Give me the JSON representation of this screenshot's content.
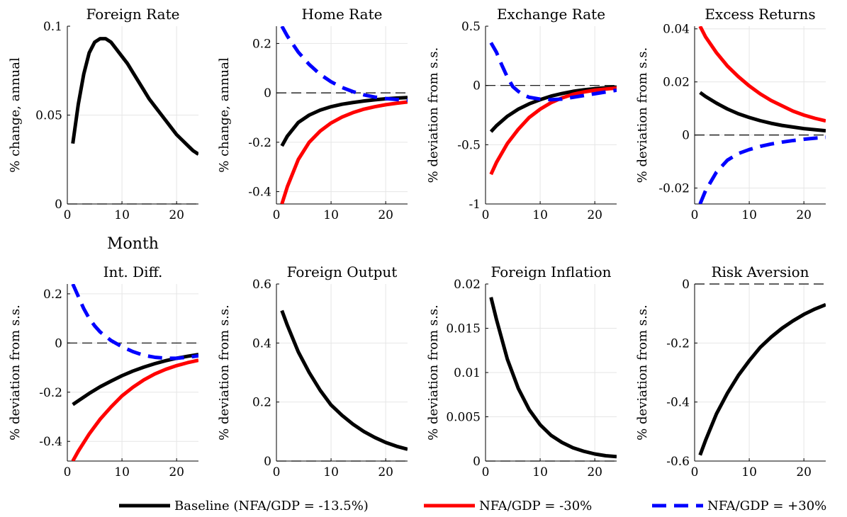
{
  "colors": {
    "baseline": "#000000",
    "nfa_minus30": "#ff0000",
    "nfa_plus30": "#0000ff",
    "grid": "#e6e6e6",
    "zero_line": "#000000"
  },
  "legend": {
    "placement": "bottom",
    "entries": [
      {
        "label": "Baseline (NFA/GDP = -13.5%)",
        "color": "#000000",
        "style": "solid"
      },
      {
        "label": "NFA/GDP = -30%",
        "color": "#ff0000",
        "style": "solid"
      },
      {
        "label": "NFA/GDP = +30%",
        "color": "#0000ff",
        "style": "dashed"
      }
    ]
  },
  "chart_data": [
    {
      "type": "line",
      "title": "Foreign Rate",
      "ylabel": "% change, annual",
      "xlabel": "Month",
      "xlim": [
        0,
        24
      ],
      "ylim": [
        0,
        0.1
      ],
      "xticks": [
        0,
        10,
        20
      ],
      "xtick_labels": [
        "0",
        "10",
        "20"
      ],
      "yticks": [
        0,
        0.05,
        0.1
      ],
      "ytick_labels": [
        "0",
        "0.05",
        "0.1"
      ],
      "grid": true,
      "zero_line": true,
      "series": [
        {
          "key": "baseline",
          "x": [
            1,
            2,
            3,
            4,
            5,
            6,
            7,
            8,
            9,
            10,
            11,
            12,
            13,
            14,
            15,
            16,
            17,
            18,
            19,
            20,
            21,
            22,
            23,
            24
          ],
          "y": [
            0.034,
            0.056,
            0.073,
            0.085,
            0.091,
            0.093,
            0.093,
            0.091,
            0.087,
            0.083,
            0.079,
            0.074,
            0.069,
            0.064,
            0.059,
            0.055,
            0.051,
            0.047,
            0.043,
            0.039,
            0.036,
            0.033,
            0.03,
            0.028
          ]
        }
      ]
    },
    {
      "type": "line",
      "title": "Home Rate",
      "ylabel": "% change, annual",
      "xlabel": "",
      "xlim": [
        0,
        24
      ],
      "ylim": [
        -0.45,
        0.27
      ],
      "xticks": [
        0,
        10,
        20
      ],
      "xtick_labels": [
        "0",
        "10",
        "20"
      ],
      "yticks": [
        -0.4,
        -0.2,
        0,
        0.2
      ],
      "ytick_labels": [
        "-0.4",
        "-0.2",
        "0",
        "0.2"
      ],
      "grid": true,
      "zero_line": true,
      "series": [
        {
          "key": "baseline",
          "x": [
            1,
            2,
            4,
            6,
            8,
            10,
            12,
            14,
            16,
            18,
            20,
            22,
            24
          ],
          "y": [
            -0.215,
            -0.175,
            -0.12,
            -0.09,
            -0.07,
            -0.056,
            -0.046,
            -0.039,
            -0.033,
            -0.028,
            -0.024,
            -0.021,
            -0.019
          ]
        },
        {
          "key": "nfa_minus30",
          "x": [
            1,
            2,
            4,
            6,
            8,
            10,
            12,
            14,
            16,
            18,
            20,
            22,
            24
          ],
          "y": [
            -0.45,
            -0.38,
            -0.27,
            -0.2,
            -0.155,
            -0.122,
            -0.098,
            -0.08,
            -0.066,
            -0.056,
            -0.048,
            -0.042,
            -0.037
          ]
        },
        {
          "key": "nfa_plus30",
          "x": [
            1,
            2,
            4,
            6,
            8,
            10,
            12,
            14,
            16,
            18,
            20,
            22,
            24
          ],
          "y": [
            0.27,
            0.23,
            0.165,
            0.115,
            0.075,
            0.045,
            0.022,
            0.005,
            -0.008,
            -0.017,
            -0.023,
            -0.027,
            -0.03
          ]
        }
      ]
    },
    {
      "type": "line",
      "title": "Exchange Rate",
      "ylabel": "% deviation from s.s.",
      "xlabel": "",
      "xlim": [
        0,
        24
      ],
      "ylim": [
        -1,
        0.5
      ],
      "xticks": [
        0,
        10,
        20
      ],
      "xtick_labels": [
        "0",
        "10",
        "20"
      ],
      "yticks": [
        -1,
        -0.5,
        0,
        0.5
      ],
      "ytick_labels": [
        "-1",
        "-0.5",
        "0",
        "0.5"
      ],
      "grid": true,
      "zero_line": true,
      "series": [
        {
          "key": "baseline",
          "x": [
            1,
            2,
            4,
            6,
            8,
            10,
            12,
            14,
            16,
            18,
            20,
            22,
            24
          ],
          "y": [
            -0.39,
            -0.34,
            -0.26,
            -0.2,
            -0.155,
            -0.12,
            -0.09,
            -0.068,
            -0.05,
            -0.037,
            -0.027,
            -0.02,
            -0.015
          ]
        },
        {
          "key": "nfa_minus30",
          "x": [
            1,
            2,
            4,
            6,
            8,
            10,
            12,
            14,
            16,
            18,
            20,
            22,
            24
          ],
          "y": [
            -0.75,
            -0.65,
            -0.49,
            -0.37,
            -0.27,
            -0.2,
            -0.145,
            -0.105,
            -0.075,
            -0.055,
            -0.04,
            -0.03,
            -0.022
          ]
        },
        {
          "key": "nfa_plus30",
          "x": [
            1,
            2,
            3,
            4,
            5,
            6,
            7,
            8,
            10,
            12,
            14,
            16,
            18,
            20,
            22,
            24
          ],
          "y": [
            0.36,
            0.28,
            0.17,
            0.07,
            -0.01,
            -0.05,
            -0.08,
            -0.1,
            -0.115,
            -0.12,
            -0.115,
            -0.1,
            -0.085,
            -0.07,
            -0.055,
            -0.04
          ]
        }
      ]
    },
    {
      "type": "line",
      "title": "Excess Returns",
      "ylabel": "% deviation from s.s.",
      "xlabel": "",
      "xlim": [
        0,
        24
      ],
      "ylim": [
        -0.026,
        0.041
      ],
      "xticks": [
        0,
        10,
        20
      ],
      "xtick_labels": [
        "0",
        "10",
        "20"
      ],
      "yticks": [
        -0.02,
        0,
        0.02,
        0.04
      ],
      "ytick_labels": [
        "-0.02",
        "0",
        "0.02",
        "0.04"
      ],
      "grid": true,
      "zero_line": true,
      "series": [
        {
          "key": "baseline",
          "x": [
            1,
            2,
            4,
            6,
            8,
            10,
            12,
            14,
            16,
            18,
            20,
            22,
            24
          ],
          "y": [
            0.016,
            0.0145,
            0.012,
            0.0098,
            0.008,
            0.0066,
            0.0054,
            0.0044,
            0.0036,
            0.003,
            0.0024,
            0.002,
            0.0016
          ]
        },
        {
          "key": "nfa_minus30",
          "x": [
            1,
            2,
            4,
            6,
            8,
            10,
            12,
            14,
            16,
            18,
            20,
            22,
            24
          ],
          "y": [
            0.041,
            0.037,
            0.031,
            0.026,
            0.022,
            0.0185,
            0.0155,
            0.013,
            0.011,
            0.009,
            0.0075,
            0.0063,
            0.0053
          ]
        },
        {
          "key": "nfa_plus30",
          "x": [
            1,
            2,
            4,
            6,
            8,
            10,
            12,
            14,
            16,
            18,
            20,
            22,
            24
          ],
          "y": [
            -0.026,
            -0.021,
            -0.014,
            -0.0095,
            -0.007,
            -0.0055,
            -0.0043,
            -0.0034,
            -0.0027,
            -0.0021,
            -0.0016,
            -0.0012,
            -0.0009
          ]
        }
      ]
    },
    {
      "type": "line",
      "title": "Int. Diff.",
      "ylabel": "% deviation from s.s.",
      "xlabel": "",
      "xlim": [
        0,
        24
      ],
      "ylim": [
        -0.48,
        0.24
      ],
      "xticks": [
        0,
        10,
        20
      ],
      "xtick_labels": [
        "0",
        "10",
        "20"
      ],
      "yticks": [
        -0.4,
        -0.2,
        0,
        0.2
      ],
      "ytick_labels": [
        "-0.4",
        "-0.2",
        "0",
        "0.2"
      ],
      "grid": true,
      "zero_line": true,
      "series": [
        {
          "key": "baseline",
          "x": [
            1,
            2,
            4,
            6,
            8,
            10,
            12,
            14,
            16,
            18,
            20,
            22,
            24
          ],
          "y": [
            -0.25,
            -0.235,
            -0.205,
            -0.178,
            -0.155,
            -0.133,
            -0.114,
            -0.098,
            -0.084,
            -0.072,
            -0.062,
            -0.054,
            -0.047
          ]
        },
        {
          "key": "nfa_minus30",
          "x": [
            1,
            2,
            4,
            6,
            8,
            10,
            12,
            14,
            16,
            18,
            20,
            22,
            24
          ],
          "y": [
            -0.48,
            -0.44,
            -0.37,
            -0.31,
            -0.26,
            -0.215,
            -0.18,
            -0.15,
            -0.126,
            -0.107,
            -0.092,
            -0.08,
            -0.07
          ]
        },
        {
          "key": "nfa_plus30",
          "x": [
            1,
            2,
            3,
            4,
            5,
            6,
            8,
            10,
            12,
            14,
            16,
            18,
            20,
            22,
            24
          ],
          "y": [
            0.24,
            0.19,
            0.14,
            0.1,
            0.07,
            0.045,
            0.01,
            -0.015,
            -0.035,
            -0.05,
            -0.058,
            -0.062,
            -0.062,
            -0.058,
            -0.052
          ]
        }
      ]
    },
    {
      "type": "line",
      "title": "Foreign Output",
      "ylabel": "% deviation from s.s.",
      "xlabel": "",
      "xlim": [
        0,
        24
      ],
      "ylim": [
        0,
        0.6
      ],
      "xticks": [
        0,
        10,
        20
      ],
      "xtick_labels": [
        "0",
        "10",
        "20"
      ],
      "yticks": [
        0,
        0.2,
        0.4,
        0.6
      ],
      "ytick_labels": [
        "0",
        "0.2",
        "0.4",
        "0.6"
      ],
      "grid": true,
      "zero_line": true,
      "series": [
        {
          "key": "baseline",
          "x": [
            1,
            2,
            4,
            6,
            8,
            10,
            12,
            14,
            16,
            18,
            20,
            22,
            24
          ],
          "y": [
            0.51,
            0.46,
            0.37,
            0.3,
            0.24,
            0.19,
            0.155,
            0.125,
            0.1,
            0.08,
            0.063,
            0.05,
            0.04
          ]
        }
      ]
    },
    {
      "type": "line",
      "title": "Foreign Inflation",
      "ylabel": "% deviation from s.s.",
      "xlabel": "",
      "xlim": [
        0,
        24
      ],
      "ylim": [
        0,
        0.02
      ],
      "xticks": [
        0,
        10,
        20
      ],
      "xtick_labels": [
        "0",
        "10",
        "20"
      ],
      "yticks": [
        0,
        0.005,
        0.01,
        0.015,
        0.02
      ],
      "ytick_labels": [
        "0",
        "0.005",
        "0.01",
        "0.015",
        "0.02"
      ],
      "grid": true,
      "zero_line": true,
      "series": [
        {
          "key": "baseline",
          "x": [
            1,
            2,
            4,
            6,
            8,
            10,
            12,
            14,
            16,
            18,
            20,
            22,
            24
          ],
          "y": [
            0.0185,
            0.016,
            0.0115,
            0.0082,
            0.0058,
            0.0041,
            0.0029,
            0.0021,
            0.0015,
            0.0011,
            0.0008,
            0.0006,
            0.0005
          ]
        }
      ]
    },
    {
      "type": "line",
      "title": "Risk Aversion",
      "ylabel": "% deviation from s.s.",
      "xlabel": "",
      "xlim": [
        0,
        24
      ],
      "ylim": [
        -0.6,
        0
      ],
      "xticks": [
        0,
        10,
        20
      ],
      "xtick_labels": [
        "0",
        "10",
        "20"
      ],
      "yticks": [
        -0.6,
        -0.4,
        -0.2,
        0
      ],
      "ytick_labels": [
        "-0.6",
        "-0.4",
        "-0.2",
        "0"
      ],
      "grid": true,
      "zero_line": true,
      "series": [
        {
          "key": "baseline",
          "x": [
            1,
            2,
            4,
            6,
            8,
            10,
            12,
            14,
            16,
            18,
            20,
            22,
            24
          ],
          "y": [
            -0.58,
            -0.53,
            -0.44,
            -0.37,
            -0.31,
            -0.26,
            -0.215,
            -0.18,
            -0.15,
            -0.125,
            -0.103,
            -0.085,
            -0.07
          ]
        }
      ]
    }
  ]
}
